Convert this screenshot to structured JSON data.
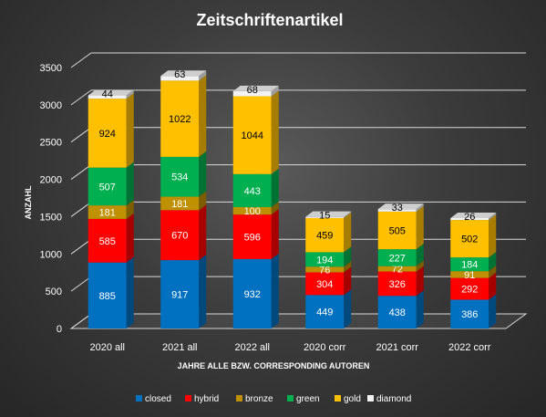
{
  "chart_data": {
    "type": "bar",
    "stacked": true,
    "three_d": true,
    "title": "Zeitschriftenartikel",
    "xlabel": "JAHRE ALLE BZW. CORRESPONDING AUTOREN",
    "ylabel": "ANZAHL",
    "ylim": [
      0,
      3500
    ],
    "yticks": [
      "0",
      "500",
      "1000",
      "1500",
      "2000",
      "2500",
      "3000",
      "3500"
    ],
    "grid": true,
    "legend_position": "bottom",
    "categories": [
      "2020 all",
      "2021 all",
      "2022 all",
      "2020 corr",
      "2021 corr",
      "2022 corr"
    ],
    "series": [
      {
        "name": "closed",
        "color": "#0070c0",
        "values": [
          885,
          917,
          932,
          449,
          438,
          386
        ]
      },
      {
        "name": "hybrid",
        "color": "#ff0000",
        "values": [
          585,
          670,
          596,
          304,
          326,
          292
        ]
      },
      {
        "name": "bronze",
        "color": "#bf9000",
        "values": [
          181,
          181,
          100,
          76,
          72,
          91
        ]
      },
      {
        "name": "green",
        "color": "#00b050",
        "values": [
          507,
          534,
          443,
          194,
          227,
          184
        ]
      },
      {
        "name": "gold",
        "color": "#ffc000",
        "values": [
          924,
          1022,
          1044,
          459,
          505,
          502
        ]
      },
      {
        "name": "diamond",
        "color": "#f2f2f2",
        "values": [
          44,
          63,
          68,
          15,
          33,
          26
        ]
      }
    ]
  }
}
